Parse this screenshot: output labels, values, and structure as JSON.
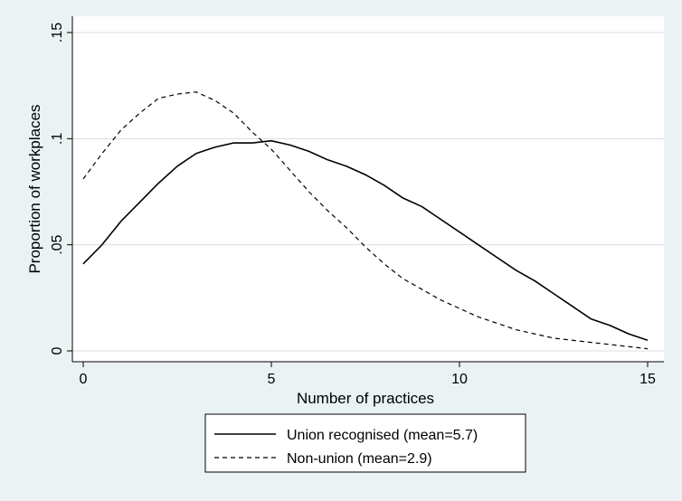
{
  "chart_data": {
    "type": "line",
    "title": "",
    "xlabel": "Number of practices",
    "ylabel": "Proportion of workplaces",
    "xlim": [
      0,
      15
    ],
    "ylim": [
      0,
      0.15
    ],
    "xticks": [
      0,
      5,
      10,
      15
    ],
    "xtick_labels": [
      "0",
      "5",
      "10",
      "15"
    ],
    "yticks": [
      0,
      0.05,
      0.1,
      0.15
    ],
    "ytick_labels": [
      "0",
      ".05",
      ".1",
      ".15"
    ],
    "grid": "horizontal",
    "legend_position": "bottom",
    "series": [
      {
        "name": "Union recognised (mean=5.7)",
        "style": "solid",
        "color": "#000000",
        "x": [
          0,
          0.5,
          1,
          1.5,
          2,
          2.5,
          3,
          3.5,
          4,
          4.5,
          5,
          5.5,
          6,
          6.5,
          7,
          7.5,
          8,
          8.5,
          9,
          9.5,
          10,
          10.5,
          11,
          11.5,
          12,
          12.5,
          13,
          13.5,
          14,
          14.5,
          15
        ],
        "values": [
          0.041,
          0.05,
          0.061,
          0.07,
          0.079,
          0.087,
          0.093,
          0.096,
          0.098,
          0.098,
          0.099,
          0.097,
          0.094,
          0.09,
          0.087,
          0.083,
          0.078,
          0.072,
          0.068,
          0.062,
          0.056,
          0.05,
          0.044,
          0.038,
          0.033,
          0.027,
          0.021,
          0.015,
          0.012,
          0.008,
          0.005
        ]
      },
      {
        "name": "Non-union (mean=2.9)",
        "style": "dashed",
        "color": "#000000",
        "x": [
          0,
          0.5,
          1,
          1.5,
          2,
          2.5,
          3,
          3.5,
          4,
          4.5,
          5,
          5.5,
          6,
          6.5,
          7,
          7.5,
          8,
          8.5,
          9,
          9.5,
          10,
          10.5,
          11,
          11.5,
          12,
          12.5,
          13,
          13.5,
          14,
          14.5,
          15
        ],
        "values": [
          0.081,
          0.093,
          0.104,
          0.112,
          0.119,
          0.121,
          0.122,
          0.118,
          0.112,
          0.103,
          0.095,
          0.085,
          0.075,
          0.066,
          0.058,
          0.049,
          0.041,
          0.034,
          0.029,
          0.024,
          0.02,
          0.016,
          0.013,
          0.01,
          0.008,
          0.006,
          0.005,
          0.004,
          0.003,
          0.002,
          0.001
        ]
      }
    ]
  },
  "colors": {
    "background": "#eaf2f3",
    "plot_background": "#ffffff",
    "axis": "#000000",
    "grid": "#dcdcdc",
    "series": "#000000"
  }
}
